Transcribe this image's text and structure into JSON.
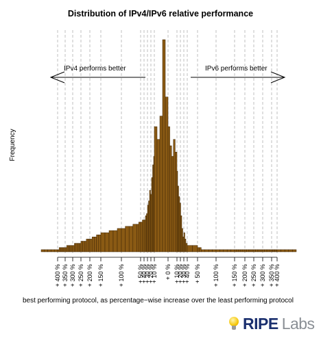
{
  "chart_data": {
    "type": "bar",
    "title": "Distribution of IPv4/IPv6 relative performance",
    "xlabel": "best performing protocol, as percentage−wise increase over the least performing protocol",
    "ylabel": "Frequency",
    "grid": "vertical dashed lines at tick positions",
    "annotations": {
      "left": "IPv4 performs better",
      "right": "IPv6 performs better"
    },
    "x_ticks": [
      "+ 400 %",
      "+ 350 %",
      "+ 300 %",
      "+ 250 %",
      "+ 200 %",
      "+ 150 %",
      "+ 100 %",
      "+ 50 %",
      "+ 40 %",
      "+ 30 %",
      "+ 20 %",
      "+ 10 %",
      "+ 0 %",
      "+ 10 %",
      "+ 20 %",
      "+ 30 %",
      "+ 40 %",
      "+ 50 %",
      "+ 100 %",
      "+ 150 %",
      "+ 200 %",
      "+ 250 %",
      "+ 300 %",
      "+ 350 %",
      "+ 400 %"
    ],
    "x_tick_signed_values": [
      -400,
      -350,
      -300,
      -250,
      -200,
      -150,
      -100,
      -50,
      -40,
      -30,
      -20,
      -10,
      0,
      10,
      20,
      30,
      40,
      50,
      100,
      150,
      200,
      250,
      300,
      350,
      400
    ],
    "x_range": [
      -450,
      450
    ],
    "y_range": [
      0,
      100
    ],
    "y_unit": "relative frequency (no y tick labels shown)",
    "histogram_x": [
      -450,
      -440,
      -430,
      -420,
      -410,
      -400,
      -390,
      -380,
      -370,
      -360,
      -350,
      -340,
      -330,
      -320,
      -310,
      -300,
      -290,
      -280,
      -270,
      -260,
      -250,
      -240,
      -230,
      -220,
      -210,
      -200,
      -190,
      -180,
      -170,
      -160,
      -150,
      -140,
      -130,
      -120,
      -110,
      -100,
      -90,
      -80,
      -70,
      -60,
      -55,
      -50,
      -45,
      -40,
      -36,
      -33,
      -30,
      -27,
      -24,
      -21,
      -18,
      -15,
      -12,
      -10,
      -8,
      -6,
      -4,
      -2,
      0,
      2,
      4,
      6,
      8,
      10,
      12,
      15,
      18,
      21,
      24,
      27,
      30,
      33,
      36,
      40,
      45,
      50,
      55,
      60,
      70,
      80,
      90,
      100,
      110,
      120,
      130,
      140,
      150,
      160,
      170,
      180,
      190,
      200,
      210,
      220,
      230,
      240,
      250,
      260,
      270,
      280,
      290,
      300,
      310,
      320,
      330,
      340,
      350,
      360,
      370,
      380,
      390,
      400,
      410,
      420,
      430,
      440
    ],
    "histogram_y": [
      1,
      1,
      1,
      1,
      1,
      1,
      2,
      2,
      2,
      2,
      2,
      3,
      3,
      3,
      3,
      3,
      4,
      4,
      4,
      4,
      5,
      5,
      5,
      6,
      6,
      6,
      7,
      7,
      8,
      8,
      9,
      9,
      10,
      10,
      11,
      11,
      12,
      12,
      13,
      13,
      14,
      14,
      15,
      15,
      17,
      18,
      22,
      24,
      29,
      27,
      35,
      41,
      45,
      59,
      53,
      64,
      100,
      73,
      59,
      50,
      45,
      53,
      47,
      38,
      31,
      26,
      23,
      17,
      11,
      7,
      9,
      6,
      4,
      3,
      3,
      2,
      2,
      1,
      1,
      1,
      1,
      1,
      1,
      1,
      1,
      1,
      1,
      1,
      1,
      1,
      1,
      1,
      1,
      1,
      1,
      1,
      1,
      1,
      1,
      1,
      1,
      1,
      1,
      1,
      1,
      1,
      1,
      1,
      1,
      1,
      1,
      1,
      1,
      1,
      1,
      1
    ]
  },
  "branding": {
    "ripe": "RIPE",
    "labs": "Labs"
  }
}
